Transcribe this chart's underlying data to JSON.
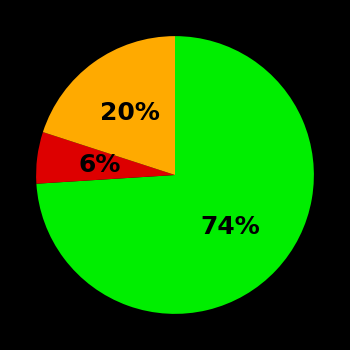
{
  "slices": [
    74,
    6,
    20
  ],
  "colors": [
    "#00ee00",
    "#dd0000",
    "#ffaa00"
  ],
  "labels": [
    "74%",
    "6%",
    "20%"
  ],
  "background_color": "#000000",
  "startangle": 90,
  "figsize": [
    3.5,
    3.5
  ],
  "dpi": 100,
  "label_fontsize": 18,
  "label_fontweight": "bold"
}
